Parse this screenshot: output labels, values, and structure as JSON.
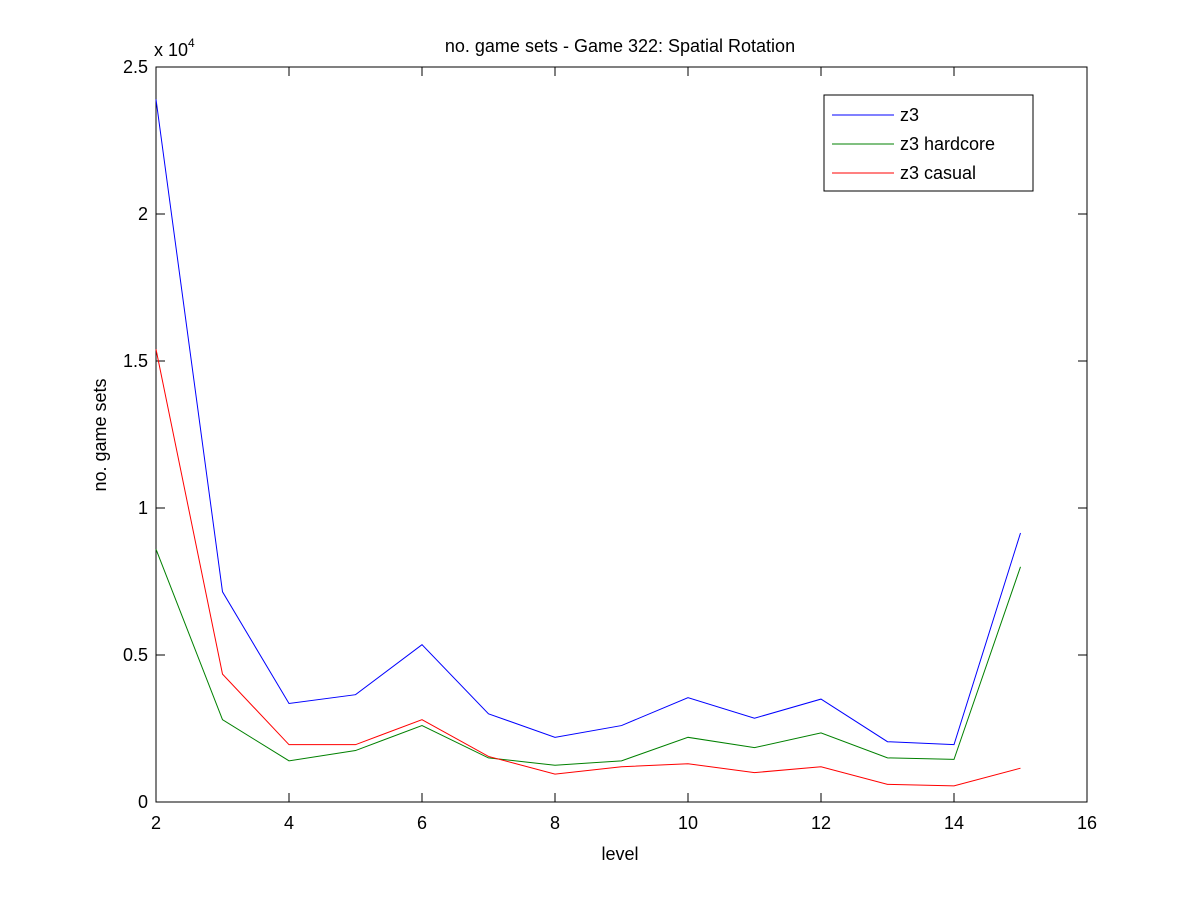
{
  "chart_data": {
    "type": "line",
    "title": "no. game sets - Game 322: Spatial Rotation",
    "xlabel": "level",
    "ylabel": "no. game sets",
    "xlim": [
      2,
      16
    ],
    "ylim": [
      0,
      25000
    ],
    "y_multiplier_label": "x 10",
    "y_multiplier_exponent": "4",
    "xticks": [
      2,
      4,
      6,
      8,
      10,
      12,
      14,
      16
    ],
    "yticks": [
      0,
      5000,
      10000,
      15000,
      20000,
      25000
    ],
    "ytick_labels": [
      "0",
      "0.5",
      "1",
      "1.5",
      "2",
      "2.5"
    ],
    "grid": false,
    "legend_position": "top-right",
    "x": [
      2,
      3,
      4,
      5,
      6,
      7,
      8,
      9,
      10,
      11,
      12,
      13,
      14,
      15
    ],
    "series": [
      {
        "name": "z3",
        "color": "#0000ff",
        "values": [
          23900,
          7150,
          3350,
          3650,
          5350,
          3000,
          2200,
          2600,
          3550,
          2850,
          3500,
          2050,
          1950,
          9150
        ]
      },
      {
        "name": "z3 hardcore",
        "color": "#008000",
        "values": [
          8600,
          2800,
          1400,
          1750,
          2600,
          1500,
          1250,
          1400,
          2200,
          1850,
          2350,
          1500,
          1450,
          8000
        ]
      },
      {
        "name": "z3 casual",
        "color": "#ff0000",
        "values": [
          15400,
          4350,
          1950,
          1950,
          2800,
          1550,
          950,
          1200,
          1300,
          1000,
          1200,
          600,
          550,
          1150
        ]
      }
    ]
  }
}
